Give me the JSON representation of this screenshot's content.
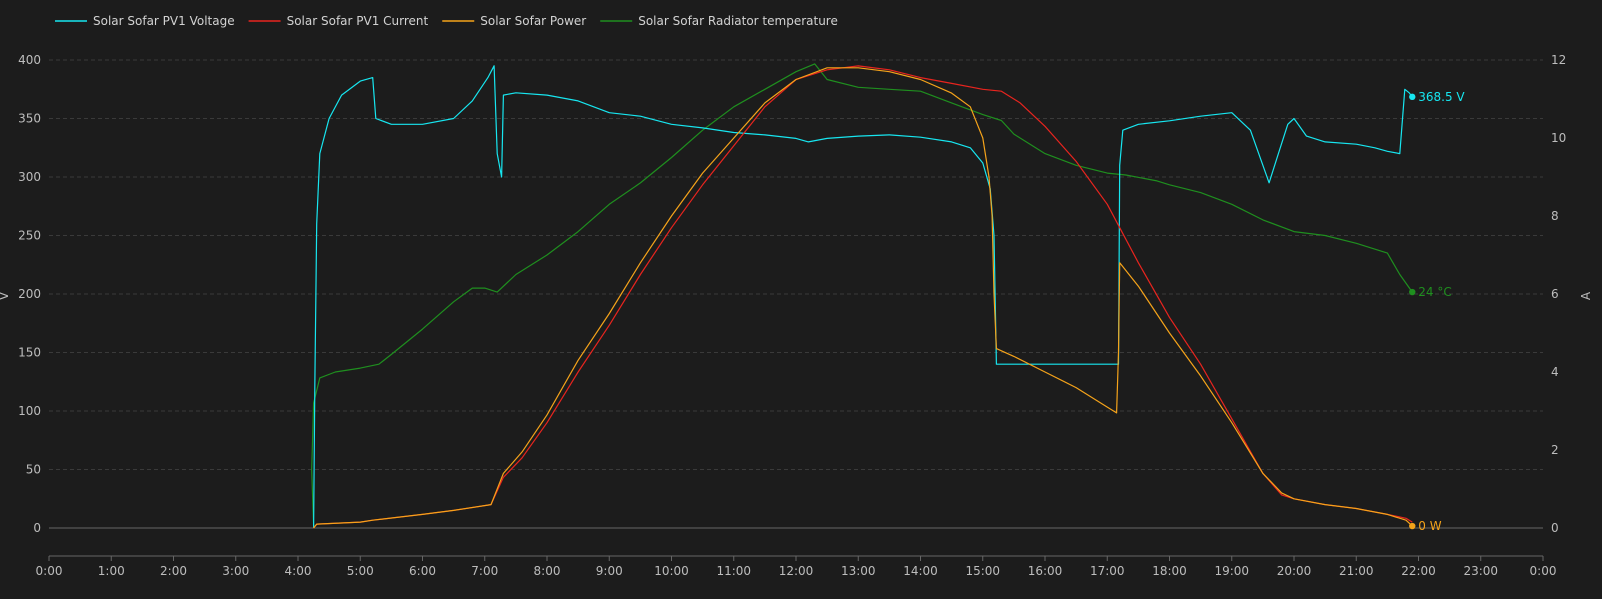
{
  "chart_data": {
    "type": "line",
    "legend_position": "top-left",
    "grid": true,
    "x": {
      "range_hours": [
        0,
        24
      ],
      "tick_labels": [
        "0:00",
        "1:00",
        "2:00",
        "3:00",
        "4:00",
        "5:00",
        "6:00",
        "7:00",
        "8:00",
        "9:00",
        "10:00",
        "11:00",
        "12:00",
        "13:00",
        "14:00",
        "15:00",
        "16:00",
        "17:00",
        "18:00",
        "19:00",
        "20:00",
        "21:00",
        "22:00",
        "23:00",
        "0:00"
      ]
    },
    "y_left": {
      "label": "V",
      "range": [
        0,
        400
      ],
      "ticks": [
        0,
        50,
        100,
        150,
        200,
        250,
        300,
        350,
        400
      ]
    },
    "y_right": {
      "label": "A",
      "range": [
        0,
        12
      ],
      "ticks": [
        0,
        2,
        4,
        6,
        8,
        10,
        12
      ]
    },
    "series": [
      {
        "name": "Solar Sofar PV1 Voltage",
        "color": "#17e6f0",
        "axis": "left",
        "end_label": "368.5 V",
        "points": [
          [
            4.25,
            0
          ],
          [
            4.27,
            120
          ],
          [
            4.3,
            260
          ],
          [
            4.35,
            320
          ],
          [
            4.5,
            350
          ],
          [
            4.7,
            370
          ],
          [
            5.0,
            382
          ],
          [
            5.2,
            385
          ],
          [
            5.25,
            350
          ],
          [
            5.5,
            345
          ],
          [
            6.0,
            345
          ],
          [
            6.5,
            350
          ],
          [
            6.8,
            365
          ],
          [
            7.05,
            385
          ],
          [
            7.15,
            395
          ],
          [
            7.2,
            320
          ],
          [
            7.27,
            300
          ],
          [
            7.3,
            370
          ],
          [
            7.5,
            372
          ],
          [
            8.0,
            370
          ],
          [
            8.5,
            365
          ],
          [
            9.0,
            355
          ],
          [
            9.5,
            352
          ],
          [
            10.0,
            345
          ],
          [
            10.5,
            342
          ],
          [
            11.0,
            338
          ],
          [
            11.5,
            336
          ],
          [
            12.0,
            333
          ],
          [
            12.2,
            330
          ],
          [
            12.5,
            333
          ],
          [
            13.0,
            335
          ],
          [
            13.5,
            336
          ],
          [
            14.0,
            334
          ],
          [
            14.5,
            330
          ],
          [
            14.8,
            325
          ],
          [
            15.0,
            312
          ],
          [
            15.12,
            290
          ],
          [
            15.18,
            250
          ],
          [
            15.22,
            140
          ],
          [
            16.0,
            140
          ],
          [
            16.5,
            140
          ],
          [
            17.0,
            140
          ],
          [
            17.18,
            140
          ],
          [
            17.2,
            310
          ],
          [
            17.25,
            340
          ],
          [
            17.5,
            345
          ],
          [
            18.0,
            348
          ],
          [
            18.5,
            352
          ],
          [
            19.0,
            355
          ],
          [
            19.3,
            340
          ],
          [
            19.6,
            295
          ],
          [
            19.75,
            320
          ],
          [
            19.9,
            345
          ],
          [
            20.0,
            350
          ],
          [
            20.2,
            335
          ],
          [
            20.5,
            330
          ],
          [
            21.0,
            328
          ],
          [
            21.3,
            325
          ],
          [
            21.5,
            322
          ],
          [
            21.7,
            320
          ],
          [
            21.78,
            375
          ],
          [
            21.85,
            372
          ],
          [
            21.9,
            368.5
          ]
        ]
      },
      {
        "name": "Solar Sofar PV1 Current",
        "color": "#e8241e",
        "axis": "right",
        "points": [
          [
            4.25,
            0
          ],
          [
            4.3,
            0.1
          ],
          [
            5.0,
            0.15
          ],
          [
            5.2,
            0.2
          ],
          [
            6.0,
            0.35
          ],
          [
            6.5,
            0.45
          ],
          [
            7.1,
            0.6
          ],
          [
            7.3,
            1.3
          ],
          [
            7.6,
            1.8
          ],
          [
            8.0,
            2.7
          ],
          [
            8.5,
            4.0
          ],
          [
            9.0,
            5.2
          ],
          [
            9.5,
            6.5
          ],
          [
            10.0,
            7.7
          ],
          [
            10.5,
            8.8
          ],
          [
            11.0,
            9.8
          ],
          [
            11.5,
            10.8
          ],
          [
            12.0,
            11.5
          ],
          [
            12.5,
            11.75
          ],
          [
            13.0,
            11.85
          ],
          [
            13.5,
            11.75
          ],
          [
            14.0,
            11.55
          ],
          [
            14.5,
            11.4
          ],
          [
            15.0,
            11.25
          ],
          [
            15.3,
            11.2
          ],
          [
            15.6,
            10.9
          ],
          [
            16.0,
            10.3
          ],
          [
            16.5,
            9.4
          ],
          [
            17.0,
            8.3
          ],
          [
            17.2,
            7.7
          ],
          [
            17.5,
            6.8
          ],
          [
            18.0,
            5.4
          ],
          [
            18.5,
            4.2
          ],
          [
            19.0,
            2.8
          ],
          [
            19.5,
            1.4
          ],
          [
            19.8,
            0.85
          ],
          [
            20.0,
            0.75
          ],
          [
            20.5,
            0.6
          ],
          [
            21.0,
            0.5
          ],
          [
            21.5,
            0.35
          ],
          [
            21.8,
            0.25
          ],
          [
            21.9,
            0.15
          ]
        ]
      },
      {
        "name": "Solar Sofar Power",
        "color": "#f5a31a",
        "axis": "right",
        "end_label": "0 W",
        "points": [
          [
            4.25,
            0
          ],
          [
            4.3,
            0.1
          ],
          [
            5.0,
            0.15
          ],
          [
            5.2,
            0.2
          ],
          [
            6.0,
            0.35
          ],
          [
            6.5,
            0.45
          ],
          [
            7.1,
            0.6
          ],
          [
            7.3,
            1.4
          ],
          [
            7.6,
            1.95
          ],
          [
            8.0,
            2.9
          ],
          [
            8.5,
            4.3
          ],
          [
            9.0,
            5.5
          ],
          [
            9.5,
            6.8
          ],
          [
            10.0,
            8.0
          ],
          [
            10.5,
            9.1
          ],
          [
            11.0,
            10.0
          ],
          [
            11.5,
            10.9
          ],
          [
            12.0,
            11.5
          ],
          [
            12.5,
            11.8
          ],
          [
            13.0,
            11.8
          ],
          [
            13.5,
            11.7
          ],
          [
            14.0,
            11.5
          ],
          [
            14.5,
            11.15
          ],
          [
            14.8,
            10.8
          ],
          [
            15.0,
            10.0
          ],
          [
            15.1,
            9.0
          ],
          [
            15.15,
            8.0
          ],
          [
            15.18,
            6.0
          ],
          [
            15.22,
            4.6
          ],
          [
            15.5,
            4.4
          ],
          [
            16.0,
            4.0
          ],
          [
            16.5,
            3.6
          ],
          [
            17.0,
            3.1
          ],
          [
            17.15,
            2.95
          ],
          [
            17.18,
            4.5
          ],
          [
            17.2,
            6.8
          ],
          [
            17.5,
            6.2
          ],
          [
            18.0,
            5.0
          ],
          [
            18.5,
            3.9
          ],
          [
            19.0,
            2.7
          ],
          [
            19.5,
            1.4
          ],
          [
            19.8,
            0.9
          ],
          [
            20.0,
            0.75
          ],
          [
            20.5,
            0.6
          ],
          [
            21.0,
            0.5
          ],
          [
            21.5,
            0.35
          ],
          [
            21.8,
            0.2
          ],
          [
            21.9,
            0.05
          ]
        ]
      },
      {
        "name": "Solar Sofar Radiator temperature",
        "color": "#1f8f1f",
        "axis": "right",
        "end_label": "24 °C",
        "points": [
          [
            4.25,
            0.05
          ],
          [
            4.22,
            1.5
          ],
          [
            4.25,
            3.2
          ],
          [
            4.35,
            3.85
          ],
          [
            4.6,
            4.0
          ],
          [
            5.0,
            4.1
          ],
          [
            5.3,
            4.2
          ],
          [
            5.5,
            4.45
          ],
          [
            6.0,
            5.1
          ],
          [
            6.5,
            5.8
          ],
          [
            6.8,
            6.15
          ],
          [
            7.0,
            6.15
          ],
          [
            7.2,
            6.05
          ],
          [
            7.5,
            6.5
          ],
          [
            8.0,
            7.0
          ],
          [
            8.5,
            7.6
          ],
          [
            9.0,
            8.3
          ],
          [
            9.5,
            8.85
          ],
          [
            10.0,
            9.5
          ],
          [
            10.5,
            10.2
          ],
          [
            11.0,
            10.8
          ],
          [
            11.5,
            11.25
          ],
          [
            12.0,
            11.7
          ],
          [
            12.3,
            11.9
          ],
          [
            12.5,
            11.5
          ],
          [
            13.0,
            11.3
          ],
          [
            13.5,
            11.25
          ],
          [
            14.0,
            11.2
          ],
          [
            14.5,
            10.9
          ],
          [
            15.0,
            10.6
          ],
          [
            15.3,
            10.45
          ],
          [
            15.5,
            10.1
          ],
          [
            16.0,
            9.6
          ],
          [
            16.5,
            9.3
          ],
          [
            17.0,
            9.1
          ],
          [
            17.3,
            9.05
          ],
          [
            17.8,
            8.9
          ],
          [
            18.0,
            8.8
          ],
          [
            18.5,
            8.6
          ],
          [
            19.0,
            8.3
          ],
          [
            19.5,
            7.9
          ],
          [
            20.0,
            7.6
          ],
          [
            20.5,
            7.5
          ],
          [
            21.0,
            7.3
          ],
          [
            21.5,
            7.05
          ],
          [
            21.7,
            6.5
          ],
          [
            21.9,
            6.05
          ]
        ]
      }
    ]
  }
}
